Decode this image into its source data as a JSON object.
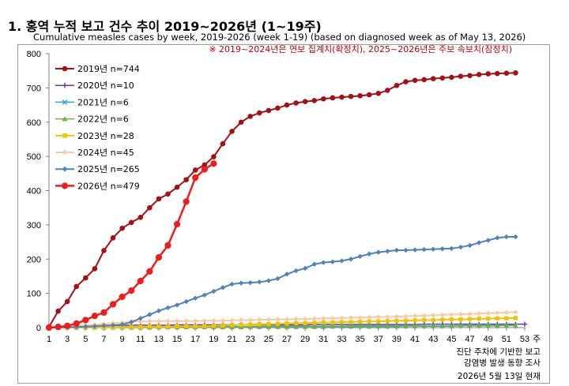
{
  "title": "1. 홍역 누적 보고 건수 추이 2019~2026년 (1~19주)",
  "subtitle": "Cumulative measles cases by week, 2019-2026 (week 1-19) (based on diagnosed week as of May 13, 2026)",
  "note": "※ 2019~2024년은 연보 집계치(확정치), 2025~2026년은 주보 속보치(잠정치)",
  "x_unit": "주",
  "footer": [
    "진단 주차에 기반한 보고",
    "감염병 발생 동향 조사",
    "2026년 5월 13일 현재"
  ],
  "chart_data": {
    "type": "line",
    "title": "1. 홍역 누적 보고 건수 추이 2019~2026년 (1~19주)",
    "subtitle": "Cumulative measles cases by week, 2019-2026 (week 1-19) (based on diagnosed week as of May 13, 2026)",
    "xlabel": "주",
    "ylabel": "",
    "xlim": [
      1,
      53
    ],
    "ylim": [
      0,
      800
    ],
    "x_ticks": [
      1,
      3,
      5,
      7,
      9,
      11,
      13,
      15,
      17,
      19,
      21,
      23,
      25,
      27,
      29,
      31,
      33,
      35,
      37,
      39,
      41,
      43,
      45,
      47,
      49,
      51,
      53
    ],
    "y_ticks": [
      0,
      100,
      200,
      300,
      400,
      500,
      600,
      700,
      800
    ],
    "grid": false,
    "legend_position": "top-left",
    "series": [
      {
        "name": "2019년 n=744",
        "color": "#a50f15",
        "marker": "circle",
        "width": 2,
        "x": [
          1,
          2,
          3,
          4,
          5,
          6,
          7,
          8,
          9,
          10,
          11,
          12,
          13,
          14,
          15,
          16,
          17,
          18,
          19,
          20,
          21,
          22,
          23,
          24,
          25,
          26,
          27,
          28,
          29,
          30,
          31,
          32,
          33,
          34,
          35,
          36,
          37,
          38,
          39,
          40,
          41,
          42,
          43,
          44,
          45,
          46,
          47,
          48,
          49,
          50,
          51,
          52
        ],
        "values": [
          2,
          48,
          76,
          120,
          145,
          172,
          225,
          262,
          290,
          307,
          322,
          350,
          376,
          390,
          410,
          432,
          460,
          475,
          499,
          537,
          573,
          600,
          617,
          627,
          634,
          641,
          650,
          656,
          660,
          663,
          668,
          671,
          673,
          675,
          677,
          680,
          684,
          693,
          707,
          718,
          722,
          724,
          727,
          729,
          731,
          734,
          736,
          739,
          741,
          742,
          743,
          744
        ]
      },
      {
        "name": "2020년 n=10",
        "color": "#7030a0",
        "marker": "plus",
        "width": 1.5,
        "x": [
          1,
          2,
          3,
          4,
          5,
          6,
          7,
          8,
          9,
          10,
          11,
          12,
          13,
          14,
          15,
          16,
          17,
          18,
          19,
          20,
          21,
          22,
          23,
          24,
          25,
          26,
          27,
          28,
          29,
          30,
          31,
          32,
          33,
          34,
          35,
          36,
          37,
          38,
          39,
          40,
          41,
          42,
          43,
          44,
          45,
          46,
          47,
          48,
          49,
          50,
          51,
          52,
          53
        ],
        "values": [
          0,
          1,
          2,
          2,
          3,
          4,
          5,
          6,
          6,
          7,
          7,
          7,
          7,
          7,
          8,
          8,
          8,
          8,
          8,
          8,
          8,
          8,
          8,
          8,
          8,
          8,
          8,
          8,
          8,
          9,
          9,
          9,
          9,
          9,
          9,
          9,
          9,
          9,
          9,
          9,
          9,
          10,
          10,
          10,
          10,
          10,
          10,
          10,
          10,
          10,
          10,
          10,
          10
        ]
      },
      {
        "name": "2021년 n=6",
        "color": "#2aa7d5",
        "marker": "x",
        "width": 1.5,
        "x": [
          1,
          2,
          3,
          4,
          5,
          6,
          7,
          8,
          9,
          10,
          11,
          12,
          13,
          14,
          15,
          16,
          17,
          18,
          19,
          20,
          21,
          22,
          23,
          24,
          25,
          26,
          27,
          28,
          29,
          30,
          31,
          32,
          33,
          34,
          35,
          36,
          37,
          38,
          39,
          40,
          41,
          42,
          43,
          44,
          45,
          46,
          47,
          48,
          49,
          50,
          51,
          52
        ],
        "values": [
          0,
          0,
          0,
          0,
          1,
          1,
          1,
          1,
          2,
          2,
          2,
          2,
          2,
          2,
          3,
          3,
          3,
          3,
          3,
          3,
          3,
          3,
          3,
          3,
          4,
          4,
          4,
          4,
          4,
          4,
          4,
          4,
          4,
          5,
          5,
          5,
          5,
          5,
          5,
          5,
          5,
          5,
          5,
          5,
          5,
          6,
          6,
          6,
          6,
          6,
          6,
          6
        ]
      },
      {
        "name": "2022년 n=6",
        "color": "#70ad47",
        "marker": "triangle",
        "width": 1.5,
        "x": [
          1,
          2,
          3,
          4,
          5,
          6,
          7,
          8,
          9,
          10,
          11,
          12,
          13,
          14,
          15,
          16,
          17,
          18,
          19,
          20,
          21,
          22,
          23,
          24,
          25,
          26,
          27,
          28,
          29,
          30,
          31,
          32,
          33,
          34,
          35,
          36,
          37,
          38,
          39,
          40,
          41,
          42,
          43,
          44,
          45,
          46,
          47,
          48,
          49,
          50,
          51,
          52
        ],
        "values": [
          0,
          0,
          0,
          0,
          0,
          0,
          0,
          0,
          0,
          0,
          0,
          0,
          1,
          1,
          1,
          1,
          1,
          1,
          1,
          1,
          1,
          1,
          2,
          2,
          2,
          2,
          2,
          2,
          2,
          2,
          2,
          3,
          3,
          3,
          3,
          3,
          3,
          3,
          3,
          4,
          4,
          4,
          4,
          4,
          4,
          5,
          5,
          5,
          5,
          5,
          6,
          6
        ]
      },
      {
        "name": "2023년 n=28",
        "color": "#f2c200",
        "marker": "square",
        "width": 2,
        "x": [
          1,
          2,
          3,
          4,
          5,
          6,
          7,
          8,
          9,
          10,
          11,
          12,
          13,
          14,
          15,
          16,
          17,
          18,
          19,
          20,
          21,
          22,
          23,
          24,
          25,
          26,
          27,
          28,
          29,
          30,
          31,
          32,
          33,
          34,
          35,
          36,
          37,
          38,
          39,
          40,
          41,
          42,
          43,
          44,
          45,
          46,
          47,
          48,
          49,
          50,
          51,
          52
        ],
        "values": [
          0,
          0,
          0,
          1,
          1,
          1,
          1,
          1,
          2,
          2,
          2,
          3,
          3,
          3,
          4,
          4,
          4,
          4,
          5,
          6,
          7,
          8,
          9,
          10,
          10,
          11,
          12,
          13,
          13,
          14,
          15,
          15,
          16,
          16,
          17,
          18,
          18,
          19,
          20,
          20,
          21,
          22,
          22,
          23,
          24,
          24,
          25,
          26,
          26,
          27,
          27,
          28
        ]
      },
      {
        "name": "2024년 n=45",
        "color": "#f7c9a5",
        "marker": "diamond",
        "width": 2,
        "x": [
          1,
          2,
          3,
          4,
          5,
          6,
          7,
          8,
          9,
          10,
          11,
          12,
          13,
          14,
          15,
          16,
          17,
          18,
          19,
          20,
          21,
          22,
          23,
          24,
          25,
          26,
          27,
          28,
          29,
          30,
          31,
          32,
          33,
          34,
          35,
          36,
          37,
          38,
          39,
          40,
          41,
          42,
          43,
          44,
          45,
          46,
          47,
          48,
          49,
          50,
          51,
          52
        ],
        "values": [
          0,
          1,
          3,
          5,
          7,
          9,
          11,
          13,
          15,
          17,
          18,
          19,
          19,
          19,
          19,
          19,
          19,
          20,
          20,
          20,
          21,
          22,
          22,
          23,
          23,
          24,
          24,
          25,
          25,
          26,
          27,
          27,
          28,
          29,
          29,
          30,
          31,
          31,
          32,
          33,
          34,
          35,
          36,
          37,
          38,
          39,
          40,
          41,
          42,
          43,
          44,
          45
        ]
      },
      {
        "name": "2025년 n=265",
        "color": "#4f81bd",
        "marker": "diamond",
        "width": 2,
        "x": [
          1,
          2,
          3,
          4,
          5,
          6,
          7,
          8,
          9,
          10,
          11,
          12,
          13,
          14,
          15,
          16,
          17,
          18,
          19,
          20,
          21,
          22,
          23,
          24,
          25,
          26,
          27,
          28,
          29,
          30,
          31,
          32,
          33,
          34,
          35,
          36,
          37,
          38,
          39,
          40,
          41,
          42,
          43,
          44,
          45,
          46,
          47,
          48,
          49,
          50,
          51,
          52
        ],
        "values": [
          0,
          0,
          1,
          2,
          3,
          4,
          6,
          7,
          9,
          16,
          27,
          38,
          49,
          58,
          66,
          76,
          86,
          95,
          106,
          117,
          127,
          130,
          131,
          133,
          137,
          143,
          156,
          166,
          173,
          185,
          190,
          192,
          195,
          200,
          208,
          215,
          220,
          223,
          226,
          226,
          227,
          228,
          229,
          230,
          231,
          235,
          240,
          248,
          255,
          262,
          265,
          265
        ]
      },
      {
        "name": "2026년 n=479",
        "color": "#ee1c1c",
        "marker": "circle",
        "width": 2.5,
        "x": [
          1,
          2,
          3,
          4,
          5,
          6,
          7,
          8,
          9,
          10,
          11,
          12,
          13,
          14,
          15,
          16,
          17,
          18,
          19
        ],
        "values": [
          0,
          2,
          5,
          12,
          22,
          34,
          44,
          68,
          90,
          108,
          136,
          164,
          205,
          240,
          302,
          368,
          438,
          462,
          479
        ]
      }
    ]
  }
}
